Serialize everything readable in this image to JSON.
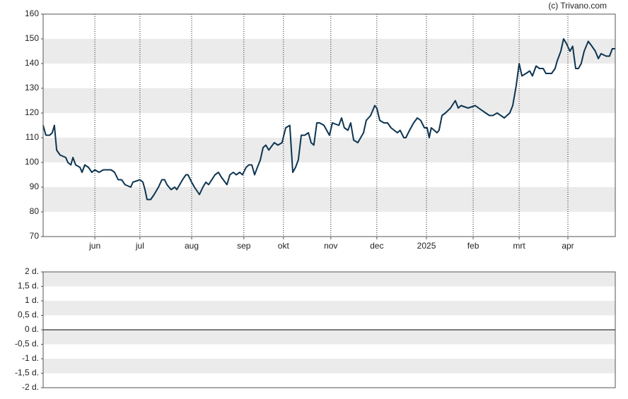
{
  "chart_data": [
    {
      "type": "line",
      "source": "(c) Trivano.com",
      "xlim": [
        0,
        250
      ],
      "xticks": [
        {
          "value": 22.6,
          "label": "jun"
        },
        {
          "value": 42.3,
          "label": "jul"
        },
        {
          "value": 64.9,
          "label": "aug"
        },
        {
          "value": 87.7,
          "label": "sep"
        },
        {
          "value": 105.0,
          "label": "okt"
        },
        {
          "value": 125.7,
          "label": "nov"
        },
        {
          "value": 145.8,
          "label": "dec"
        },
        {
          "value": 167.5,
          "label": "2025"
        },
        {
          "value": 187.9,
          "label": "feb"
        },
        {
          "value": 208.0,
          "label": "mrt"
        },
        {
          "value": 229.3,
          "label": "apr"
        }
      ],
      "ylim": [
        70,
        160
      ],
      "yticks": [
        70,
        80,
        90,
        100,
        110,
        120,
        130,
        140,
        150,
        160
      ],
      "bands": true,
      "band_color": "#ebebeb",
      "vgrid": true,
      "x": [
        0,
        1.2,
        2.8,
        4.0,
        4.9,
        5.9,
        7.4,
        9.9,
        10.8,
        12.1,
        13.0,
        14.2,
        16.1,
        17.0,
        18.2,
        19.8,
        21.3,
        22.6,
        24.4,
        26.3,
        29.7,
        31.2,
        32.8,
        34.3,
        35.8,
        38.3,
        39.2,
        42.3,
        43.6,
        44.5,
        45.4,
        47.0,
        48.5,
        50.4,
        51.9,
        53.1,
        54.1,
        55.9,
        57.5,
        58.4,
        60.9,
        62.4,
        63.3,
        64.9,
        66.1,
        68.3,
        69.8,
        71.1,
        72.3,
        75.1,
        76.6,
        77.9,
        80.3,
        81.6,
        83.1,
        84.4,
        85.9,
        87.1,
        88.7,
        89.9,
        91.2,
        92.4,
        93.6,
        94.9,
        96.1,
        97.3,
        98.6,
        101.0,
        102.6,
        104.4,
        106.0,
        107.8,
        109.1,
        110.3,
        111.5,
        112.8,
        114.3,
        115.9,
        117.1,
        118.3,
        119.6,
        120.8,
        122.7,
        125.1,
        126.4,
        129.2,
        130.4,
        131.6,
        133.2,
        134.4,
        135.7,
        137.5,
        140.0,
        141.2,
        143.1,
        144.9,
        145.8,
        147.1,
        148.9,
        150.5,
        152.0,
        154.8,
        156.0,
        157.6,
        158.5,
        160.1,
        161.9,
        163.5,
        165.0,
        166.6,
        167.8,
        168.7,
        169.6,
        170.9,
        172.1,
        173.0,
        174.3,
        175.8,
        178.0,
        180.1,
        181.4,
        182.6,
        185.7,
        188.8,
        190.3,
        193.4,
        195.0,
        196.5,
        198.4,
        201.5,
        202.7,
        203.9,
        205.2,
        206.7,
        208.0,
        209.2,
        211.0,
        212.6,
        213.8,
        215.4,
        216.9,
        218.5,
        219.7,
        222.2,
        223.7,
        224.6,
        226.2,
        227.4,
        228.7,
        230.2,
        231.4,
        232.7,
        233.9,
        235.1,
        236.4,
        238.2,
        239.8,
        241.3,
        242.6,
        243.8,
        246.0,
        247.5,
        248.7,
        250.0
      ],
      "series": [
        {
          "color": "#0d3552",
          "values": [
            115,
            111,
            111,
            112,
            115,
            105,
            103,
            102,
            100,
            99,
            102,
            99,
            98,
            96,
            99,
            98,
            96,
            97,
            96,
            97,
            97,
            96,
            93,
            93,
            91,
            90,
            92,
            93,
            92,
            89,
            85,
            85,
            87,
            90,
            93,
            93,
            91,
            89,
            90,
            89,
            93,
            95,
            95,
            92,
            90,
            87,
            90,
            92,
            91,
            95,
            96,
            94,
            91,
            95,
            96,
            95,
            96,
            95,
            98,
            99,
            99,
            95,
            98,
            101,
            106,
            107,
            105,
            108,
            107,
            108,
            114,
            115,
            96,
            98,
            101,
            111,
            111,
            112,
            108,
            107,
            116,
            116,
            115,
            111,
            116,
            115,
            118,
            114,
            113,
            116,
            109,
            108,
            112,
            117,
            119,
            123,
            122,
            117,
            116,
            116,
            114,
            112,
            113,
            110,
            110,
            113,
            116,
            118,
            117,
            114,
            114,
            110,
            114,
            113,
            112,
            113,
            119,
            120,
            122,
            125,
            122,
            123,
            122,
            123,
            122,
            120,
            119,
            119,
            120,
            118,
            119,
            120,
            123,
            131,
            140,
            135,
            136,
            137,
            135,
            139,
            138,
            138,
            136,
            136,
            138,
            141,
            145,
            150,
            148,
            145,
            147,
            138,
            138,
            140,
            145,
            149,
            147,
            145,
            142,
            144,
            143,
            143,
            146,
            146
          ]
        }
      ]
    },
    {
      "type": "line",
      "ylim": [
        -2,
        2
      ],
      "yticks": [
        {
          "value": -2,
          "label": "-2 d."
        },
        {
          "value": -1.5,
          "label": "-1,5 d."
        },
        {
          "value": -1,
          "label": "-1 d."
        },
        {
          "value": -0.5,
          "label": "-0,5 d."
        },
        {
          "value": 0,
          "label": "0 d."
        },
        {
          "value": 0.5,
          "label": "0,5 d."
        },
        {
          "value": 1,
          "label": "1 d."
        },
        {
          "value": 1.5,
          "label": "1,5 d."
        },
        {
          "value": 2,
          "label": "2 d."
        }
      ],
      "bands": true,
      "band_color": "#ebebeb",
      "zero_line": true,
      "series": []
    }
  ]
}
